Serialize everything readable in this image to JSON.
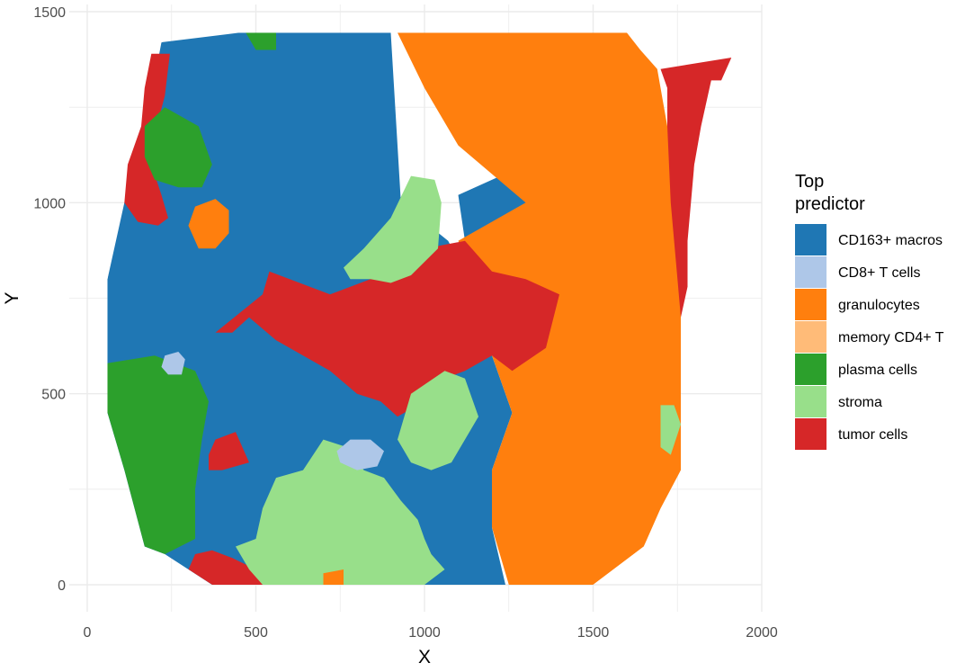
{
  "chart_data": {
    "type": "heatmap",
    "title": "",
    "xlabel": "X",
    "ylabel": "Y",
    "xlim": [
      0,
      2000
    ],
    "ylim": [
      0,
      1500
    ],
    "x_ticks": [
      "0",
      "500",
      "1000",
      "1500",
      "2000"
    ],
    "y_ticks": [
      "0",
      "500",
      "1000",
      "1500"
    ],
    "grid": true,
    "legend_placement": "right",
    "legend": {
      "title_lines": [
        "Top",
        "predictor"
      ],
      "entries": [
        {
          "key": "CD163",
          "name": "CD163+ macros",
          "color": "#1f77b4"
        },
        {
          "key": "CD8",
          "name": "CD8+ T cells",
          "color": "#aec7e8"
        },
        {
          "key": "GRAN",
          "name": "granulocytes",
          "color": "#ff7f0e"
        },
        {
          "key": "MEMCD4",
          "name": "memory CD4+ T",
          "color": "#ffbb78"
        },
        {
          "key": "PLASMA",
          "name": "plasma cells",
          "color": "#2ca02c"
        },
        {
          "key": "STROMA",
          "name": "stroma",
          "color": "#98df8a"
        },
        {
          "key": "TUMOR",
          "name": "tumor cells",
          "color": "#d62728"
        }
      ]
    },
    "regions": [
      {
        "category": "CD163",
        "polygon": [
          [
            60,
            580
          ],
          [
            60,
            800
          ],
          [
            110,
            1000
          ],
          [
            190,
            1280
          ],
          [
            220,
            1420
          ],
          [
            450,
            1445
          ],
          [
            900,
            1445
          ],
          [
            930,
            1000
          ],
          [
            1070,
            900
          ],
          [
            1130,
            800
          ],
          [
            1200,
            600
          ],
          [
            1260,
            450
          ],
          [
            1200,
            300
          ],
          [
            1200,
            150
          ],
          [
            1240,
            0
          ],
          [
            0,
            0
          ],
          [
            0,
            580
          ]
        ]
      },
      {
        "category": "CD163",
        "polygon": [
          [
            1100,
            1020
          ],
          [
            1250,
            1080
          ],
          [
            1380,
            1000
          ],
          [
            1400,
            880
          ],
          [
            1250,
            820
          ],
          [
            1120,
            900
          ]
        ]
      },
      {
        "category": "CD163",
        "polygon": [
          [
            1280,
            0
          ],
          [
            1500,
            0
          ],
          [
            1500,
            60
          ],
          [
            1300,
            80
          ]
        ]
      },
      {
        "category": "TUMOR",
        "polygon": [
          [
            1700,
            1350
          ],
          [
            1910,
            1380
          ],
          [
            1900,
            1320
          ],
          [
            1850,
            1320
          ],
          [
            1820,
            1200
          ],
          [
            1800,
            1100
          ],
          [
            1780,
            900
          ],
          [
            1780,
            780
          ],
          [
            1760,
            700
          ],
          [
            1740,
            620
          ],
          [
            1720,
            700
          ],
          [
            1720,
            1000
          ],
          [
            1720,
            1300
          ]
        ]
      },
      {
        "category": "GRAN",
        "polygon": [
          [
            920,
            1445
          ],
          [
            1600,
            1445
          ],
          [
            1640,
            1400
          ],
          [
            1690,
            1350
          ],
          [
            1720,
            1200
          ],
          [
            1730,
            1000
          ],
          [
            1750,
            800
          ],
          [
            1760,
            700
          ],
          [
            1760,
            300
          ],
          [
            1700,
            200
          ],
          [
            1650,
            100
          ],
          [
            1500,
            0
          ],
          [
            1250,
            0
          ],
          [
            1200,
            150
          ],
          [
            1200,
            300
          ],
          [
            1260,
            450
          ],
          [
            1200,
            600
          ],
          [
            1160,
            800
          ],
          [
            1100,
            900
          ],
          [
            1300,
            1000
          ],
          [
            1100,
            1150
          ],
          [
            1000,
            1300
          ]
        ]
      },
      {
        "category": "TUMOR",
        "polygon": [
          [
            520,
            760
          ],
          [
            540,
            820
          ],
          [
            720,
            760
          ],
          [
            840,
            800
          ],
          [
            920,
            820
          ],
          [
            1000,
            880
          ],
          [
            1120,
            900
          ],
          [
            1200,
            820
          ],
          [
            1300,
            800
          ],
          [
            1400,
            760
          ],
          [
            1360,
            620
          ],
          [
            1260,
            560
          ],
          [
            1200,
            600
          ],
          [
            1120,
            560
          ],
          [
            1060,
            540
          ],
          [
            980,
            470
          ],
          [
            920,
            440
          ],
          [
            870,
            480
          ],
          [
            800,
            500
          ],
          [
            720,
            560
          ],
          [
            640,
            600
          ],
          [
            560,
            640
          ],
          [
            480,
            700
          ],
          [
            430,
            660
          ],
          [
            380,
            660
          ]
        ]
      },
      {
        "category": "TUMOR",
        "polygon": [
          [
            190,
            1390
          ],
          [
            245,
            1390
          ],
          [
            230,
            1280
          ],
          [
            200,
            1180
          ],
          [
            190,
            1100
          ],
          [
            220,
            1020
          ],
          [
            240,
            960
          ],
          [
            210,
            940
          ],
          [
            150,
            950
          ],
          [
            110,
            1000
          ],
          [
            120,
            1100
          ],
          [
            160,
            1200
          ],
          [
            170,
            1300
          ]
        ]
      },
      {
        "category": "TUMOR",
        "polygon": [
          [
            370,
            0
          ],
          [
            520,
            0
          ],
          [
            500,
            40
          ],
          [
            430,
            70
          ],
          [
            370,
            90
          ],
          [
            320,
            80
          ],
          [
            300,
            40
          ]
        ]
      },
      {
        "category": "TUMOR",
        "polygon": [
          [
            380,
            380
          ],
          [
            440,
            400
          ],
          [
            480,
            320
          ],
          [
            400,
            300
          ],
          [
            360,
            300
          ],
          [
            360,
            340
          ]
        ]
      },
      {
        "category": "PLASMA",
        "polygon": [
          [
            60,
            580
          ],
          [
            200,
            600
          ],
          [
            320,
            560
          ],
          [
            360,
            480
          ],
          [
            340,
            380
          ],
          [
            320,
            250
          ],
          [
            320,
            120
          ],
          [
            230,
            80
          ],
          [
            170,
            100
          ],
          [
            110,
            300
          ],
          [
            60,
            450
          ]
        ]
      },
      {
        "category": "PLASMA",
        "polygon": [
          [
            170,
            1200
          ],
          [
            230,
            1250
          ],
          [
            330,
            1200
          ],
          [
            370,
            1100
          ],
          [
            340,
            1040
          ],
          [
            270,
            1040
          ],
          [
            200,
            1060
          ],
          [
            170,
            1120
          ]
        ]
      },
      {
        "category": "PLASMA",
        "polygon": [
          [
            470,
            1445
          ],
          [
            560,
            1445
          ],
          [
            560,
            1400
          ],
          [
            500,
            1400
          ]
        ]
      },
      {
        "category": "STROMA",
        "polygon": [
          [
            760,
            830
          ],
          [
            820,
            880
          ],
          [
            900,
            960
          ],
          [
            960,
            1070
          ],
          [
            1030,
            1060
          ],
          [
            1050,
            1000
          ],
          [
            1040,
            880
          ],
          [
            960,
            810
          ],
          [
            900,
            790
          ],
          [
            840,
            800
          ],
          [
            780,
            800
          ]
        ]
      },
      {
        "category": "STROMA",
        "polygon": [
          [
            960,
            500
          ],
          [
            1060,
            560
          ],
          [
            1120,
            540
          ],
          [
            1160,
            440
          ],
          [
            1120,
            380
          ],
          [
            1080,
            320
          ],
          [
            1020,
            300
          ],
          [
            960,
            320
          ],
          [
            920,
            380
          ]
        ]
      },
      {
        "category": "STROMA",
        "polygon": [
          [
            440,
            100
          ],
          [
            500,
            120
          ],
          [
            520,
            200
          ],
          [
            560,
            280
          ],
          [
            640,
            300
          ],
          [
            700,
            380
          ],
          [
            770,
            360
          ],
          [
            820,
            300
          ],
          [
            880,
            280
          ],
          [
            930,
            220
          ],
          [
            980,
            170
          ],
          [
            1000,
            120
          ],
          [
            1020,
            80
          ],
          [
            1060,
            40
          ],
          [
            1000,
            0
          ],
          [
            520,
            0
          ],
          [
            480,
            40
          ]
        ]
      },
      {
        "category": "STROMA",
        "polygon": [
          [
            1700,
            470
          ],
          [
            1740,
            470
          ],
          [
            1760,
            420
          ],
          [
            1730,
            340
          ],
          [
            1700,
            360
          ]
        ]
      },
      {
        "category": "GRAN",
        "polygon": [
          [
            320,
            990
          ],
          [
            380,
            1010
          ],
          [
            420,
            980
          ],
          [
            420,
            920
          ],
          [
            380,
            880
          ],
          [
            330,
            880
          ],
          [
            300,
            940
          ]
        ]
      },
      {
        "category": "GRAN",
        "polygon": [
          [
            700,
            0
          ],
          [
            760,
            0
          ],
          [
            760,
            40
          ],
          [
            700,
            30
          ]
        ]
      },
      {
        "category": "CD8",
        "polygon": [
          [
            740,
            350
          ],
          [
            780,
            380
          ],
          [
            840,
            380
          ],
          [
            880,
            350
          ],
          [
            860,
            310
          ],
          [
            800,
            300
          ],
          [
            750,
            320
          ]
        ]
      },
      {
        "category": "CD8",
        "polygon": [
          [
            230,
            600
          ],
          [
            270,
            610
          ],
          [
            290,
            590
          ],
          [
            280,
            550
          ],
          [
            240,
            550
          ],
          [
            220,
            570
          ]
        ]
      }
    ]
  }
}
